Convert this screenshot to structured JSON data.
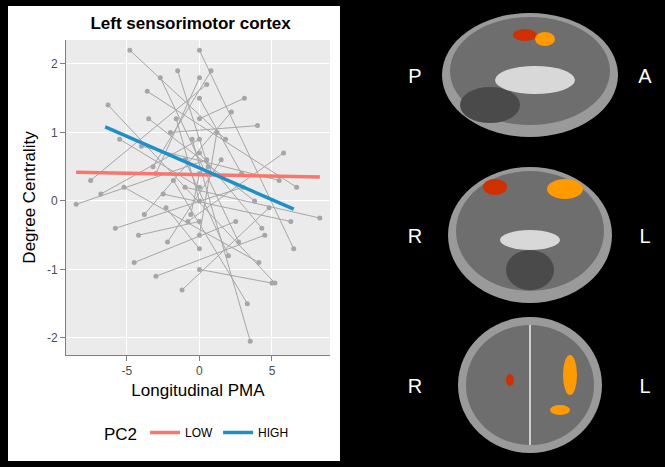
{
  "chart_data": {
    "type": "scatter",
    "title": "Left sensorimotor cortex",
    "x_label": "Longitudinal PMA",
    "y_label": "Degree Centrality",
    "xlim": [
      -9.2,
      9
    ],
    "ylim": [
      -2.25,
      2.35
    ],
    "xticks": [
      -5,
      0,
      5
    ],
    "yticks": [
      -2,
      -1,
      0,
      1,
      2
    ],
    "grid": true,
    "legend": "bottom",
    "legend_title": "PC2",
    "series": [
      {
        "type": "spaghetti",
        "color": "#A6A6A6",
        "marker": "circle",
        "subjects": [
          {
            "x": [
              -7.5,
              0.5
            ],
            "y": [
              0.3,
              1.7
            ]
          },
          {
            "x": [
              -6.3,
              5.2
            ],
            "y": [
              1.4,
              -1.2
            ]
          },
          {
            "x": [
              -5.8,
              3.0
            ],
            "y": [
              -0.4,
              0.2
            ]
          },
          {
            "x": [
              -5.2,
              4.1
            ],
            "y": [
              0.2,
              -0.9
            ]
          },
          {
            "x": [
              -4.8,
              1.8
            ],
            "y": [
              2.2,
              0.9
            ]
          },
          {
            "x": [
              -4.5,
              2.5
            ],
            "y": [
              -0.9,
              -0.3
            ]
          },
          {
            "x": [
              -4.0,
              5.5
            ],
            "y": [
              0.8,
              0.3
            ]
          },
          {
            "x": [
              -3.8,
              2.2
            ],
            "y": [
              -0.2,
              1.3
            ]
          },
          {
            "x": [
              -3.5,
              3.8
            ],
            "y": [
              1.2,
              0.0
            ]
          },
          {
            "x": [
              -3.2,
              0.8
            ],
            "y": [
              0.5,
              1.9
            ]
          },
          {
            "x": [
              -3.0,
              4.5
            ],
            "y": [
              -1.1,
              -0.5
            ]
          },
          {
            "x": [
              -2.7,
              2.7
            ],
            "y": [
              1.8,
              -0.6
            ]
          },
          {
            "x": [
              -2.5,
              6.3
            ],
            "y": [
              0.1,
              -0.3
            ]
          },
          {
            "x": [
              -2.2,
              1.5
            ],
            "y": [
              -0.6,
              0.6
            ]
          },
          {
            "x": [
              -2.0,
              4.0
            ],
            "y": [
              1.0,
              1.1
            ]
          },
          {
            "x": [
              -1.8,
              3.3
            ],
            "y": [
              0.3,
              -1.5
            ]
          },
          {
            "x": [
              -1.5,
              0.6
            ],
            "y": [
              1.9,
              0.5
            ]
          },
          {
            "x": [
              -1.2,
              4.8
            ],
            "y": [
              -1.3,
              -0.1
            ]
          },
          {
            "x": [
              -1.0,
              2.0
            ],
            "y": [
              0.6,
              -0.8
            ]
          },
          {
            "x": [
              -0.8,
              5.8
            ],
            "y": [
              -0.3,
              0.7
            ]
          },
          {
            "x": [
              -0.5,
              3.5
            ],
            "y": [
              0.9,
              -2.05
            ]
          },
          {
            "x": [
              0,
              6.5
            ],
            "y": [
              2.2,
              -0.7
            ]
          },
          {
            "x": [
              0,
              2.9
            ],
            "y": [
              1.5,
              0.4
            ]
          },
          {
            "x": [
              0,
              4.3
            ],
            "y": [
              0.7,
              -0.4
            ]
          },
          {
            "x": [
              0,
              1.2
            ],
            "y": [
              -0.5,
              1.0
            ]
          },
          {
            "x": [
              0,
              5.0
            ],
            "y": [
              -1.0,
              -1.2
            ]
          },
          {
            "x": [
              -6.8,
              0
            ],
            "y": [
              0.1,
              0.9
            ]
          },
          {
            "x": [
              -5.5,
              0
            ],
            "y": [
              0.9,
              0.2
            ]
          },
          {
            "x": [
              -4.2,
              0
            ],
            "y": [
              -0.5,
              -0.3
            ]
          },
          {
            "x": [
              -3.0,
              0
            ],
            "y": [
              0.4,
              1.8
            ]
          },
          {
            "x": [
              -2.3,
              0
            ],
            "y": [
              -0.1,
              -0.7
            ]
          },
          {
            "x": [
              -1.6,
              0
            ],
            "y": [
              1.2,
              0.0
            ]
          },
          {
            "x": [
              -8.5,
              0.5
            ],
            "y": [
              -0.05,
              0.6
            ]
          },
          {
            "x": [
              -1.0,
              8.3
            ],
            "y": [
              0.2,
              -0.25
            ]
          },
          {
            "x": [
              -3.6,
              6.7
            ],
            "y": [
              1.6,
              0.2
            ]
          },
          {
            "x": [
              0,
              3.1
            ],
            "y": [
              1.2,
              1.5
            ]
          },
          {
            "x": [
              -0.6,
              0
            ],
            "y": [
              -0.2,
              0.4
            ]
          }
        ]
      },
      {
        "name": "LOW",
        "type": "line",
        "color": "#F8766D",
        "x": [
          -8.5,
          8.3
        ],
        "values": [
          0.42,
          0.35
        ]
      },
      {
        "name": "HIGH",
        "type": "line",
        "color": "#1E90C8",
        "x": [
          -6.5,
          6.5
        ],
        "values": [
          1.08,
          -0.12
        ]
      }
    ]
  },
  "brain_panels": [
    {
      "left": "P",
      "right": "A"
    },
    {
      "left": "R",
      "right": "L"
    },
    {
      "left": "R",
      "right": "L"
    }
  ]
}
